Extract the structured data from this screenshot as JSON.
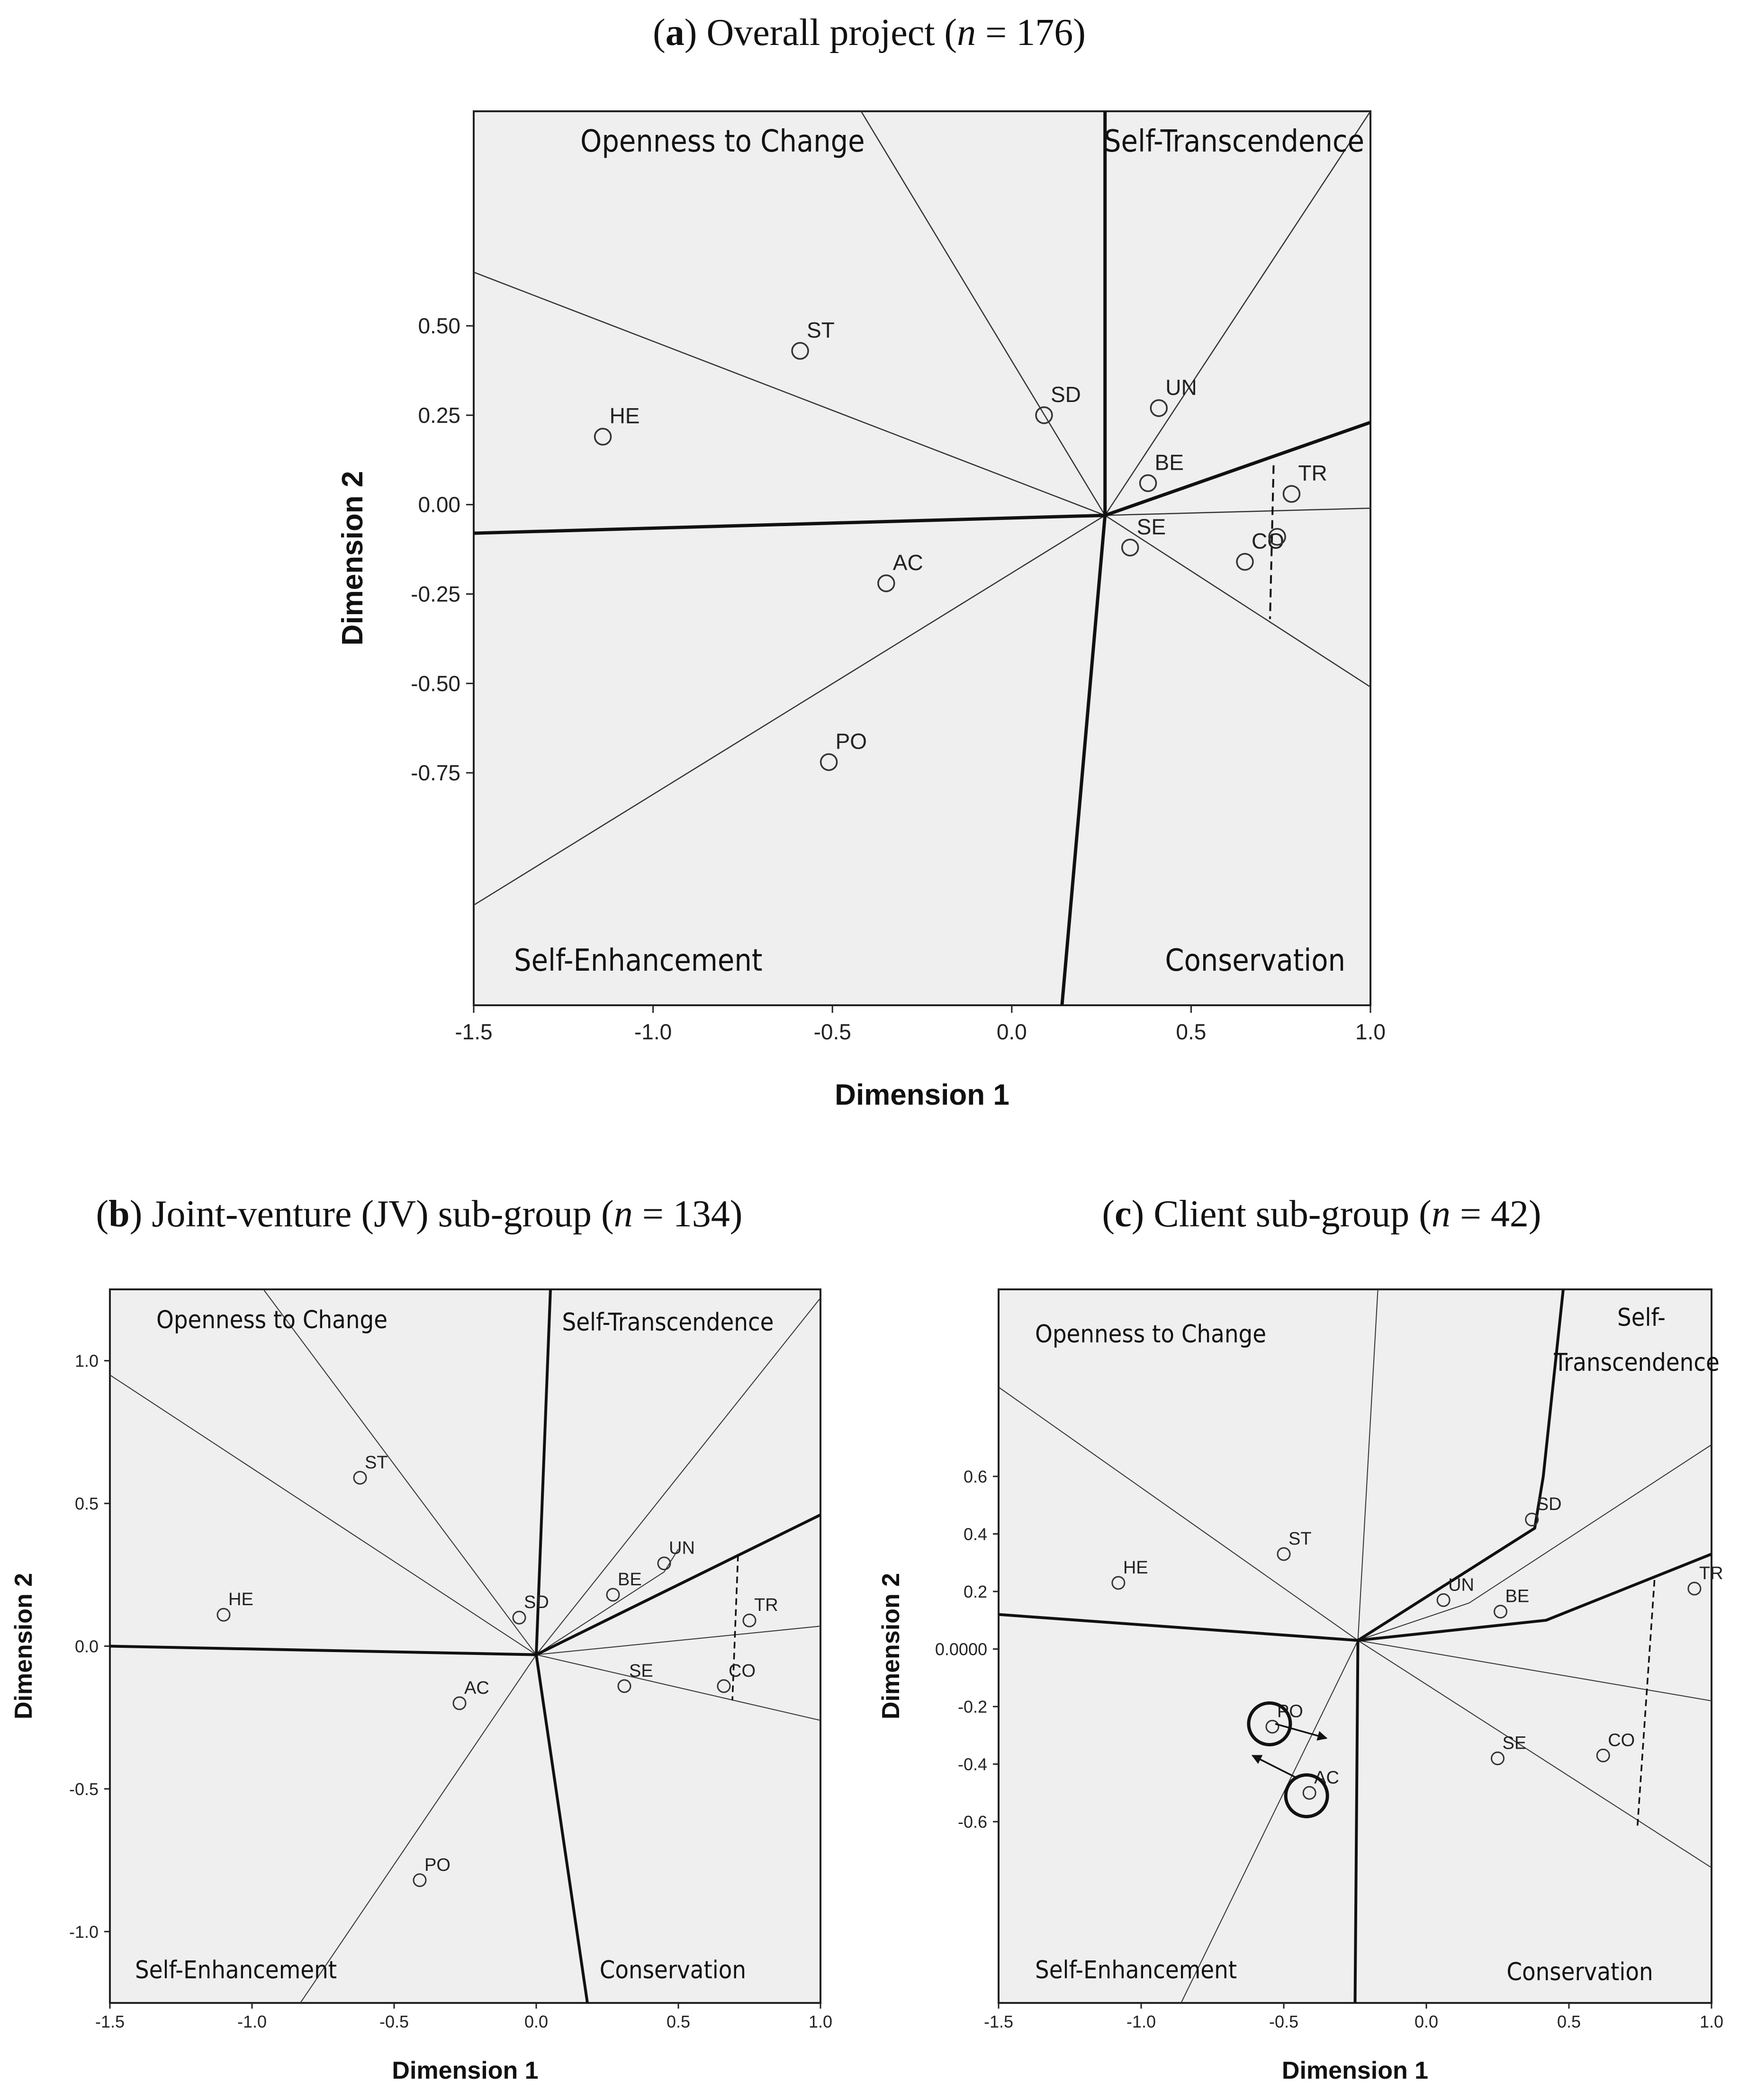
{
  "titles": {
    "a": {
      "letter": "a",
      "text": " Overall project (",
      "n": "n",
      "rest": " = 176)"
    },
    "b": {
      "letter": "b",
      "text": " Joint-venture (JV) sub-group (",
      "n": "n",
      "rest": " = 134)"
    },
    "c": {
      "letter": "c",
      "text": " Client sub-group (",
      "n": "n",
      "rest": " = 42)"
    }
  },
  "chart_data": [
    {
      "id": "a",
      "type": "scatter",
      "title": "(a) Overall project (n = 176)",
      "xlabel": "Dimension 1",
      "ylabel": "Dimension 2",
      "xlim": [
        -1.5,
        1.0
      ],
      "ylim": [
        -1.4,
        1.1
      ],
      "xticks": [
        -1.5,
        -1.0,
        -0.5,
        0.0,
        0.5,
        1.0
      ],
      "xtick_labels": [
        "-1.5",
        "-1.0",
        "-0.5",
        "0.0",
        "0.5",
        "1.0"
      ],
      "yticks": [
        0.5,
        0.25,
        0.0,
        -0.25,
        -0.5,
        -0.75
      ],
      "ytick_labels": [
        "0.50",
        "0.25",
        "0.00",
        "-0.25",
        "-0.50",
        "-0.75"
      ],
      "regions": [
        {
          "label": "Openness to Change",
          "pos": "top-left"
        },
        {
          "label": "Self-Transcendence",
          "pos": "top-right"
        },
        {
          "label": "Self-Enhancement",
          "pos": "bottom-left"
        },
        {
          "label": "Conservation",
          "pos": "bottom-right"
        }
      ],
      "points": [
        {
          "label": "ST",
          "x": -0.59,
          "y": 0.43
        },
        {
          "label": "HE",
          "x": -1.14,
          "y": 0.19
        },
        {
          "label": "SD",
          "x": 0.09,
          "y": 0.25
        },
        {
          "label": "UN",
          "x": 0.41,
          "y": 0.27
        },
        {
          "label": "BE",
          "x": 0.38,
          "y": 0.06
        },
        {
          "label": "TR",
          "x": 0.78,
          "y": 0.03
        },
        {
          "label": "SE",
          "x": 0.33,
          "y": -0.12
        },
        {
          "label": "CO",
          "x": 0.65,
          "y": -0.16
        },
        {
          "label": "AC",
          "x": -0.35,
          "y": -0.22
        },
        {
          "label": "PO",
          "x": -0.51,
          "y": -0.72
        }
      ],
      "extra_points": [
        {
          "x": 0.74,
          "y": -0.09
        }
      ],
      "center": [
        0.26,
        -0.03
      ],
      "thick_lines": [
        {
          "from": [
            0.26,
            -0.03
          ],
          "to": [
            0.26,
            1.1
          ]
        },
        {
          "from": [
            0.26,
            -0.03
          ],
          "to": [
            1.0,
            0.23
          ]
        },
        {
          "from": [
            0.26,
            -0.03
          ],
          "to": [
            -1.5,
            -0.08
          ]
        },
        {
          "from": [
            0.26,
            -0.03
          ],
          "to": [
            0.14,
            -1.4
          ]
        }
      ],
      "thin_lines": [
        {
          "from": [
            0.26,
            -0.03
          ],
          "to": [
            -0.42,
            1.1
          ]
        },
        {
          "from": [
            0.26,
            -0.03
          ],
          "to": [
            -1.5,
            0.65
          ]
        },
        {
          "from": [
            0.26,
            -0.03
          ],
          "to": [
            1.0,
            1.1
          ]
        },
        {
          "from": [
            0.26,
            -0.03
          ],
          "to": [
            1.0,
            -0.01
          ]
        },
        {
          "from": [
            0.26,
            -0.03
          ],
          "to": [
            1.0,
            -0.51
          ]
        },
        {
          "from": [
            0.26,
            -0.03
          ],
          "to": [
            -1.5,
            -1.12
          ]
        }
      ],
      "dashed_lines": [
        {
          "from": [
            0.73,
            0.11
          ],
          "to": [
            0.72,
            -0.32
          ]
        }
      ]
    },
    {
      "id": "b",
      "type": "scatter",
      "title": "(b) Joint-venture (JV) sub-group (n = 134)",
      "xlabel": "Dimension 1",
      "ylabel": "Dimension 2",
      "xlim": [
        -1.5,
        1.0
      ],
      "ylim": [
        -1.25,
        1.25
      ],
      "xticks": [
        -1.5,
        -1.0,
        -0.5,
        0.0,
        0.5,
        1.0
      ],
      "xtick_labels": [
        "-1.5",
        "-1.0",
        "-0.5",
        "0.0",
        "0.5",
        "1.0"
      ],
      "yticks": [
        1.0,
        0.5,
        0.0,
        -0.5,
        -1.0
      ],
      "ytick_labels": [
        "1.0",
        "0.5",
        "0.0",
        "-0.5",
        "-1.0"
      ],
      "regions": [
        {
          "label": "Openness to Change",
          "pos": "top-left"
        },
        {
          "label": "Self-Transcendence",
          "pos": "top-right"
        },
        {
          "label": "Self-Enhancement",
          "pos": "bottom-left"
        },
        {
          "label": "Conservation",
          "pos": "bottom-right"
        }
      ],
      "points": [
        {
          "label": "ST",
          "x": -0.62,
          "y": 0.59
        },
        {
          "label": "HE",
          "x": -1.1,
          "y": 0.11
        },
        {
          "label": "SD",
          "x": -0.06,
          "y": 0.1
        },
        {
          "label": "UN",
          "x": 0.45,
          "y": 0.29
        },
        {
          "label": "BE",
          "x": 0.27,
          "y": 0.18
        },
        {
          "label": "TR",
          "x": 0.75,
          "y": 0.09
        },
        {
          "label": "SE",
          "x": 0.31,
          "y": -0.14
        },
        {
          "label": "CO",
          "x": 0.66,
          "y": -0.14
        },
        {
          "label": "AC",
          "x": -0.27,
          "y": -0.2
        },
        {
          "label": "PO",
          "x": -0.41,
          "y": -0.82
        }
      ],
      "extra_points": [],
      "center": [
        0.0,
        -0.03
      ],
      "thick_lines": [
        {
          "from": [
            0.0,
            -0.03
          ],
          "to": [
            0.05,
            1.25
          ]
        },
        {
          "from": [
            0.0,
            -0.03
          ],
          "to": [
            1.0,
            0.46
          ]
        },
        {
          "from": [
            0.0,
            -0.03
          ],
          "to": [
            -1.5,
            0.0
          ]
        },
        {
          "from": [
            0.0,
            -0.03
          ],
          "to": [
            0.18,
            -1.25
          ]
        }
      ],
      "thin_lines": [
        {
          "from": [
            0.0,
            -0.03
          ],
          "to": [
            -0.96,
            1.25
          ]
        },
        {
          "from": [
            0.0,
            -0.03
          ],
          "to": [
            -1.5,
            0.95
          ]
        },
        {
          "from": [
            0.0,
            -0.03
          ],
          "to": [
            1.0,
            1.22
          ]
        },
        {
          "from": [
            0.0,
            -0.03
          ],
          "to": [
            1.0,
            0.07
          ]
        },
        {
          "from": [
            0.0,
            -0.03
          ],
          "to": [
            1.0,
            -0.26
          ]
        },
        {
          "from": [
            0.0,
            -0.03
          ],
          "to": [
            -0.83,
            -1.25
          ]
        }
      ],
      "dashed_lines": [
        {
          "from": [
            0.71,
            0.32
          ],
          "to": [
            0.69,
            -0.19
          ]
        }
      ],
      "poly_lines": [
        {
          "points": [
            [
              0.0,
              -0.03
            ],
            [
              0.45,
              0.26
            ],
            [
              0.5,
              0.34
            ]
          ]
        }
      ]
    },
    {
      "id": "c",
      "type": "scatter",
      "title": "(c) Client sub-group (n = 42)",
      "xlabel": "Dimension 1",
      "ylabel": "Dimension 2",
      "xlim": [
        -1.5,
        1.0
      ],
      "ylim": [
        -1.23,
        1.25
      ],
      "xticks": [
        -1.5,
        -1.0,
        -0.5,
        0.0,
        0.5,
        1.0
      ],
      "xtick_labels": [
        "-1.5",
        "-1.0",
        "-0.5",
        "0.0",
        "0.5",
        "1.0"
      ],
      "yticks": [
        0.6,
        0.4,
        0.2,
        0.0,
        -0.2,
        -0.4,
        -0.6
      ],
      "ytick_labels": [
        "0.6",
        "0.4",
        "0.2",
        "0.0000",
        "-0.2",
        "-0.4",
        "-0.6"
      ],
      "regions": [
        {
          "label": "Openness to Change",
          "pos": "top-left"
        },
        {
          "label": "Self-",
          "pos": "top-right"
        },
        {
          "label": "Transcendence",
          "pos": "top-right"
        },
        {
          "label": "Self-Enhancement",
          "pos": "bottom-left"
        },
        {
          "label": "Conservation",
          "pos": "bottom-right"
        }
      ],
      "points": [
        {
          "label": "ST",
          "x": -0.5,
          "y": 0.33
        },
        {
          "label": "HE",
          "x": -1.08,
          "y": 0.23
        },
        {
          "label": "SD",
          "x": 0.37,
          "y": 0.45
        },
        {
          "label": "UN",
          "x": 0.06,
          "y": 0.17
        },
        {
          "label": "BE",
          "x": 0.26,
          "y": 0.13
        },
        {
          "label": "TR",
          "x": 0.94,
          "y": 0.21
        },
        {
          "label": "SE",
          "x": 0.25,
          "y": -0.38
        },
        {
          "label": "CO",
          "x": 0.62,
          "y": -0.37
        },
        {
          "label": "PO",
          "x": -0.54,
          "y": -0.27
        },
        {
          "label": "AC",
          "x": -0.41,
          "y": -0.5
        }
      ],
      "extra_points": [],
      "center": [
        -0.24,
        0.03
      ],
      "highlight_circles": [
        {
          "label": "PO",
          "x": -0.55,
          "y": -0.26
        },
        {
          "label": "AC",
          "x": -0.42,
          "y": -0.51
        }
      ],
      "arrows": [
        {
          "from": [
            -0.53,
            -0.26
          ],
          "to": [
            -0.35,
            -0.31
          ]
        },
        {
          "from": [
            -0.45,
            -0.45
          ],
          "to": [
            -0.61,
            -0.37
          ]
        }
      ],
      "thick_polylines": [
        {
          "points": [
            [
              -0.24,
              0.03
            ],
            [
              0.38,
              0.42
            ],
            [
              0.41,
              0.6
            ],
            [
              0.48,
              1.25
            ]
          ]
        },
        {
          "points": [
            [
              -0.24,
              0.03
            ],
            [
              0.42,
              0.1
            ],
            [
              1.0,
              0.33
            ]
          ]
        },
        {
          "points": [
            [
              -0.24,
              0.03
            ],
            [
              -1.5,
              0.12
            ]
          ]
        },
        {
          "points": [
            [
              -0.24,
              0.03
            ],
            [
              -0.25,
              -1.23
            ]
          ]
        }
      ],
      "thin_lines": [
        {
          "from": [
            -0.24,
            0.03
          ],
          "to": [
            -1.5,
            0.91
          ]
        },
        {
          "from": [
            -0.24,
            0.03
          ],
          "to": [
            -0.17,
            1.25
          ]
        },
        {
          "from": [
            -0.24,
            0.03
          ],
          "to": [
            1.0,
            -0.18
          ]
        },
        {
          "from": [
            -0.24,
            0.03
          ],
          "to": [
            1.0,
            -0.76
          ]
        },
        {
          "from": [
            -0.24,
            0.03
          ],
          "to": [
            -0.86,
            -1.23
          ]
        }
      ],
      "thin_polylines": [
        {
          "points": [
            [
              -0.24,
              0.03
            ],
            [
              0.15,
              0.16
            ],
            [
              1.0,
              0.71
            ]
          ]
        }
      ],
      "dashed_lines": [
        {
          "from": [
            0.8,
            0.24
          ],
          "to": [
            0.74,
            -0.62
          ]
        }
      ]
    }
  ]
}
